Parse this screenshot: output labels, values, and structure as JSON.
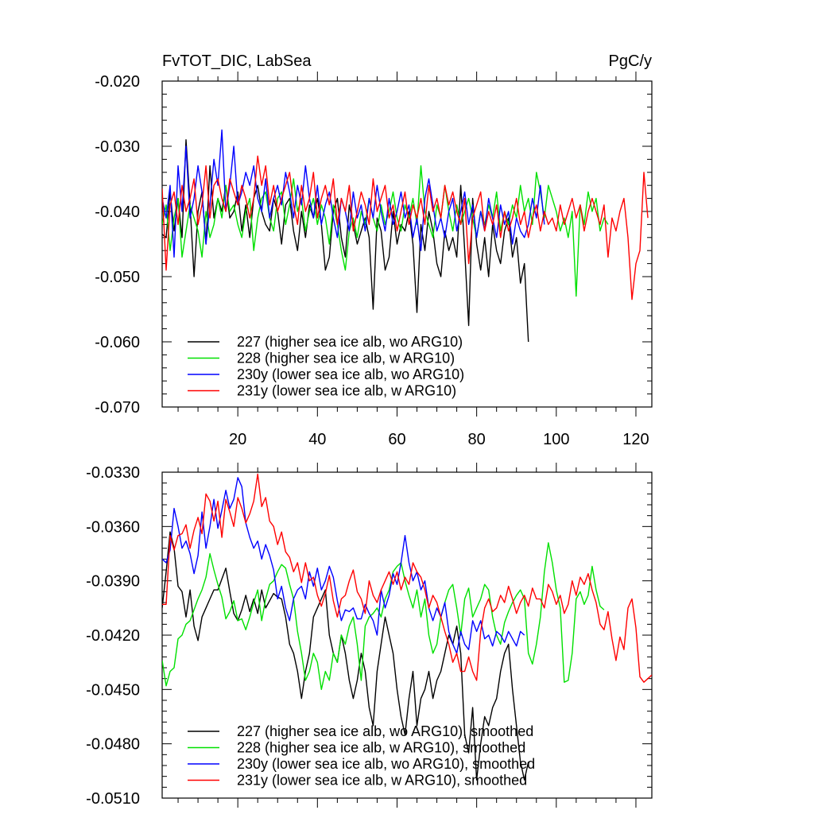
{
  "header": {
    "left_title": "FvTOT_DIC, LabSea",
    "right_title": "PgC/y"
  },
  "chart_data": [
    {
      "type": "line",
      "title": "FvTOT_DIC, LabSea",
      "units": "PgC/y",
      "xlim": [
        1,
        124
      ],
      "ylim": [
        -0.07,
        -0.02
      ],
      "x_ticks": [
        20,
        40,
        60,
        80,
        100,
        120
      ],
      "x_tick_labels": [
        "20",
        "40",
        "60",
        "80",
        "100",
        "120"
      ],
      "y_ticks": [
        -0.02,
        -0.03,
        -0.04,
        -0.05,
        -0.06,
        -0.07
      ],
      "y_tick_labels": [
        "-0.020",
        "-0.030",
        "-0.040",
        "-0.050",
        "-0.060",
        "-0.070"
      ],
      "legend_position": "bottom-left",
      "series": [
        {
          "name": "227 (higher sea ice alb, wo ARG10)",
          "color": "#000000",
          "x_start": 1,
          "values": [
            -0.0435,
            -0.044,
            -0.037,
            -0.043,
            -0.038,
            -0.044,
            -0.029,
            -0.039,
            -0.05,
            -0.04,
            -0.037,
            -0.045,
            -0.033,
            -0.041,
            -0.038,
            -0.04,
            -0.036,
            -0.041,
            -0.04,
            -0.037,
            -0.043,
            -0.039,
            -0.044,
            -0.038,
            -0.036,
            -0.04,
            -0.042,
            -0.043,
            -0.038,
            -0.04,
            -0.045,
            -0.039,
            -0.038,
            -0.043,
            -0.046,
            -0.04,
            -0.044,
            -0.039,
            -0.041,
            -0.038,
            -0.042,
            -0.049,
            -0.047,
            -0.04,
            -0.038,
            -0.044,
            -0.047,
            -0.039,
            -0.042,
            -0.045,
            -0.043,
            -0.041,
            -0.044,
            -0.055,
            -0.041,
            -0.043,
            -0.049,
            -0.047,
            -0.04,
            -0.045,
            -0.042,
            -0.043,
            -0.04,
            -0.045,
            -0.0555,
            -0.042,
            -0.046,
            -0.04,
            -0.043,
            -0.048,
            -0.05,
            -0.043,
            -0.046,
            -0.044,
            -0.047,
            -0.036,
            -0.046,
            -0.0575,
            -0.038,
            -0.045,
            -0.049,
            -0.044,
            -0.05,
            -0.042,
            -0.046,
            -0.048,
            -0.043,
            -0.041,
            -0.047,
            -0.044,
            -0.051,
            -0.048,
            -0.06
          ]
        },
        {
          "name": "228 (higher sea ice alb, w ARG10)",
          "color": "#00e000",
          "x_start": 1,
          "values": [
            -0.042,
            -0.039,
            -0.046,
            -0.041,
            -0.038,
            -0.047,
            -0.043,
            -0.039,
            -0.041,
            -0.043,
            -0.047,
            -0.04,
            -0.044,
            -0.042,
            -0.038,
            -0.041,
            -0.036,
            -0.04,
            -0.039,
            -0.042,
            -0.044,
            -0.04,
            -0.038,
            -0.046,
            -0.041,
            -0.038,
            -0.037,
            -0.041,
            -0.043,
            -0.038,
            -0.037,
            -0.042,
            -0.039,
            -0.035,
            -0.04,
            -0.038,
            -0.043,
            -0.04,
            -0.038,
            -0.042,
            -0.039,
            -0.041,
            -0.045,
            -0.039,
            -0.042,
            -0.046,
            -0.049,
            -0.043,
            -0.041,
            -0.044,
            -0.04,
            -0.042,
            -0.038,
            -0.041,
            -0.043,
            -0.039,
            -0.042,
            -0.04,
            -0.037,
            -0.041,
            -0.043,
            -0.039,
            -0.041,
            -0.038,
            -0.042,
            -0.033,
            -0.04,
            -0.042,
            -0.044,
            -0.039,
            -0.041,
            -0.036,
            -0.04,
            -0.043,
            -0.039,
            -0.042,
            -0.04,
            -0.038,
            -0.041,
            -0.044,
            -0.04,
            -0.042,
            -0.039,
            -0.041,
            -0.037,
            -0.043,
            -0.04,
            -0.042,
            -0.039,
            -0.041,
            -0.036,
            -0.04,
            -0.038,
            -0.042,
            -0.034,
            -0.037,
            -0.041,
            -0.036,
            -0.038,
            -0.04,
            -0.043,
            -0.041,
            -0.044,
            -0.04,
            -0.053,
            -0.039,
            -0.042,
            -0.037,
            -0.04,
            -0.038,
            -0.043,
            -0.041,
            -0.042
          ]
        },
        {
          "name": "230y (lower sea ice alb, wo ARG10)",
          "color": "#0000ff",
          "x_start": 1,
          "values": [
            -0.038,
            -0.041,
            -0.036,
            -0.047,
            -0.033,
            -0.04,
            -0.03,
            -0.041,
            -0.038,
            -0.033,
            -0.037,
            -0.045,
            -0.039,
            -0.032,
            -0.036,
            -0.0275,
            -0.04,
            -0.036,
            -0.03,
            -0.039,
            -0.037,
            -0.034,
            -0.036,
            -0.033,
            -0.038,
            -0.04,
            -0.035,
            -0.041,
            -0.038,
            -0.036,
            -0.039,
            -0.034,
            -0.037,
            -0.041,
            -0.036,
            -0.039,
            -0.033,
            -0.038,
            -0.041,
            -0.036,
            -0.042,
            -0.039,
            -0.037,
            -0.041,
            -0.044,
            -0.038,
            -0.04,
            -0.043,
            -0.037,
            -0.041,
            -0.039,
            -0.043,
            -0.038,
            -0.041,
            -0.036,
            -0.04,
            -0.043,
            -0.038,
            -0.042,
            -0.04,
            -0.037,
            -0.041,
            -0.039,
            -0.044,
            -0.041,
            -0.046,
            -0.038,
            -0.035,
            -0.039,
            -0.043,
            -0.041,
            -0.044,
            -0.04,
            -0.038,
            -0.043,
            -0.04,
            -0.037,
            -0.042,
            -0.039,
            -0.044,
            -0.04,
            -0.043,
            -0.038,
            -0.041,
            -0.044,
            -0.039,
            -0.042,
            -0.04,
            -0.045,
            -0.041,
            -0.043,
            -0.044,
            -0.042,
            -0.038,
            -0.041,
            -0.036,
            -0.042
          ]
        },
        {
          "name": "231y (lower sea ice alb, w ARG10)",
          "color": "#ff0000",
          "x_start": 1,
          "values": [
            -0.0365,
            -0.049,
            -0.039,
            -0.037,
            -0.042,
            -0.036,
            -0.04,
            -0.038,
            -0.035,
            -0.042,
            -0.039,
            -0.033,
            -0.041,
            -0.036,
            -0.035,
            -0.038,
            -0.04,
            -0.035,
            -0.037,
            -0.039,
            -0.036,
            -0.038,
            -0.041,
            -0.038,
            -0.0315,
            -0.036,
            -0.033,
            -0.039,
            -0.036,
            -0.04,
            -0.038,
            -0.036,
            -0.034,
            -0.039,
            -0.042,
            -0.036,
            -0.04,
            -0.038,
            -0.034,
            -0.041,
            -0.038,
            -0.036,
            -0.039,
            -0.035,
            -0.042,
            -0.038,
            -0.04,
            -0.036,
            -0.043,
            -0.04,
            -0.037,
            -0.039,
            -0.042,
            -0.035,
            -0.04,
            -0.038,
            -0.036,
            -0.041,
            -0.039,
            -0.043,
            -0.04,
            -0.037,
            -0.042,
            -0.039,
            -0.041,
            -0.038,
            -0.042,
            -0.036,
            -0.04,
            -0.038,
            -0.041,
            -0.036,
            -0.039,
            -0.037,
            -0.04,
            -0.042,
            -0.038,
            -0.048,
            -0.041,
            -0.039,
            -0.037,
            -0.043,
            -0.04,
            -0.042,
            -0.039,
            -0.044,
            -0.04,
            -0.043,
            -0.041,
            -0.038,
            -0.042,
            -0.04,
            -0.044,
            -0.041,
            -0.039,
            -0.043,
            -0.04,
            -0.042,
            -0.041,
            -0.043,
            -0.039,
            -0.042,
            -0.04,
            -0.038,
            -0.041,
            -0.039,
            -0.043,
            -0.04,
            -0.038,
            -0.04,
            -0.042,
            -0.039,
            -0.047,
            -0.041,
            -0.043,
            -0.04,
            -0.038,
            -0.044,
            -0.0535,
            -0.048,
            -0.046,
            -0.034,
            -0.041
          ]
        }
      ]
    },
    {
      "type": "line",
      "xlim": [
        1,
        124
      ],
      "ylim": [
        -0.051,
        -0.033
      ],
      "x_ticks": [
        20,
        40,
        60,
        80,
        100,
        120
      ],
      "x_tick_labels": [],
      "y_ticks": [
        -0.033,
        -0.036,
        -0.039,
        -0.042,
        -0.045,
        -0.048,
        -0.051
      ],
      "y_tick_labels": [
        "-0.0330",
        "-0.0360",
        "-0.0390",
        "-0.0420",
        "-0.0450",
        "-0.0480",
        "-0.0510"
      ],
      "legend_position": "bottom-left",
      "series": [
        {
          "name": "227 (higher sea ice alb, wo ARG10), smoothed",
          "color": "#000000",
          "x_start": 1,
          "values": [
            -0.0405,
            -0.0385,
            -0.0363,
            -0.0372,
            -0.0393,
            -0.0396,
            -0.041,
            -0.0395,
            -0.0415,
            -0.0423,
            -0.041,
            -0.0405,
            -0.04,
            -0.0395,
            -0.0395,
            -0.0389,
            -0.0383,
            -0.0396,
            -0.0408,
            -0.0412,
            -0.0406,
            -0.0398,
            -0.0407,
            -0.04,
            -0.0408,
            -0.0395,
            -0.0405,
            -0.0401,
            -0.0397,
            -0.0399,
            -0.04,
            -0.041,
            -0.0425,
            -0.043,
            -0.044,
            -0.0455,
            -0.044,
            -0.043,
            -0.041,
            -0.0405,
            -0.04,
            -0.0395,
            -0.042,
            -0.043,
            -0.0435,
            -0.042,
            -0.043,
            -0.0445,
            -0.0455,
            -0.0445,
            -0.043,
            -0.044,
            -0.046,
            -0.047,
            -0.044,
            -0.0425,
            -0.041,
            -0.042,
            -0.043,
            -0.045,
            -0.0465,
            -0.0475,
            -0.0455,
            -0.044,
            -0.047,
            -0.0455,
            -0.045,
            -0.044,
            -0.0455,
            -0.0445,
            -0.044,
            -0.043,
            -0.042,
            -0.0425,
            -0.0415,
            -0.043,
            -0.0475,
            -0.0485,
            -0.046,
            -0.05,
            -0.048,
            -0.0465,
            -0.047,
            -0.046,
            -0.0455,
            -0.044,
            -0.043,
            -0.0425,
            -0.045,
            -0.047,
            -0.049,
            -0.05,
            -0.049
          ]
        },
        {
          "name": "228 (higher sea ice alb, w ARG10), smoothed",
          "color": "#00e000",
          "x_start": 1,
          "values": [
            -0.0434,
            -0.0448,
            -0.044,
            -0.0438,
            -0.0422,
            -0.042,
            -0.0414,
            -0.0412,
            -0.0406,
            -0.04,
            -0.0395,
            -0.0388,
            -0.0375,
            -0.0384,
            -0.0392,
            -0.0399,
            -0.0411,
            -0.0407,
            -0.0401,
            -0.0412,
            -0.0411,
            -0.0417,
            -0.041,
            -0.0402,
            -0.0395,
            -0.0412,
            -0.04,
            -0.0392,
            -0.039,
            -0.0385,
            -0.0381,
            -0.0383,
            -0.0392,
            -0.04,
            -0.0418,
            -0.043,
            -0.0445,
            -0.044,
            -0.043,
            -0.0435,
            -0.045,
            -0.044,
            -0.0445,
            -0.043,
            -0.0435,
            -0.042,
            -0.0425,
            -0.0415,
            -0.041,
            -0.0425,
            -0.0445,
            -0.0415,
            -0.041,
            -0.0408,
            -0.0405,
            -0.041,
            -0.04,
            -0.0395,
            -0.0385,
            -0.0382,
            -0.038,
            -0.039,
            -0.0398,
            -0.0405,
            -0.0395,
            -0.041,
            -0.04,
            -0.042,
            -0.043,
            -0.0425,
            -0.041,
            -0.0402,
            -0.0395,
            -0.0392,
            -0.0405,
            -0.042,
            -0.04,
            -0.0394,
            -0.041,
            -0.0405,
            -0.04,
            -0.0392,
            -0.0395,
            -0.041,
            -0.042,
            -0.0425,
            -0.0413,
            -0.0407,
            -0.0402,
            -0.0398,
            -0.0395,
            -0.04,
            -0.043,
            -0.0436,
            -0.0425,
            -0.041,
            -0.0385,
            -0.0369,
            -0.038,
            -0.0395,
            -0.0405,
            -0.0446,
            -0.0445,
            -0.043,
            -0.04,
            -0.0396,
            -0.0403,
            -0.0398,
            -0.0382,
            -0.0395,
            -0.0404,
            -0.0406
          ]
        },
        {
          "name": "230y (lower sea ice alb, wo ARG10), smoothed",
          "color": "#0000ff",
          "x_start": 1,
          "values": [
            -0.0378,
            -0.038,
            -0.0373,
            -0.035,
            -0.036,
            -0.0372,
            -0.0368,
            -0.0375,
            -0.0386,
            -0.0376,
            -0.0352,
            -0.0372,
            -0.036,
            -0.0345,
            -0.0361,
            -0.0351,
            -0.034,
            -0.035,
            -0.0345,
            -0.0333,
            -0.0338,
            -0.0358,
            -0.0366,
            -0.0372,
            -0.0368,
            -0.0378,
            -0.037,
            -0.0376,
            -0.0384,
            -0.04,
            -0.0393,
            -0.0405,
            -0.0412,
            -0.04,
            -0.0395,
            -0.0393,
            -0.04,
            -0.0385,
            -0.0393,
            -0.0383,
            -0.0395,
            -0.039,
            -0.0382,
            -0.0388,
            -0.0401,
            -0.0412,
            -0.0406,
            -0.0407,
            -0.0405,
            -0.0411,
            -0.0411,
            -0.0403,
            -0.0408,
            -0.0412,
            -0.042,
            -0.0395,
            -0.0405,
            -0.0398,
            -0.0386,
            -0.0392,
            -0.038,
            -0.0365,
            -0.038,
            -0.039,
            -0.0385,
            -0.0395,
            -0.039,
            -0.0405,
            -0.0412,
            -0.0405,
            -0.041,
            -0.0402,
            -0.0418,
            -0.0425,
            -0.043,
            -0.0418,
            -0.0425,
            -0.0428,
            -0.0412,
            -0.0418,
            -0.0412,
            -0.0422,
            -0.042,
            -0.0426,
            -0.0418,
            -0.042,
            -0.0424,
            -0.0418,
            -0.0422,
            -0.0426,
            -0.0418,
            -0.042
          ]
        },
        {
          "name": "231y (lower sea ice alb, w ARG10), smoothed",
          "color": "#ff0000",
          "x_start": 1,
          "values": [
            -0.0403,
            -0.0403,
            -0.0365,
            -0.0373,
            -0.0365,
            -0.0364,
            -0.0359,
            -0.0372,
            -0.0362,
            -0.0355,
            -0.0364,
            -0.0342,
            -0.0346,
            -0.0357,
            -0.0346,
            -0.0366,
            -0.0345,
            -0.0352,
            -0.036,
            -0.0344,
            -0.035,
            -0.0358,
            -0.0353,
            -0.0346,
            -0.0331,
            -0.0349,
            -0.0344,
            -0.0357,
            -0.036,
            -0.037,
            -0.0363,
            -0.0374,
            -0.0377,
            -0.0385,
            -0.038,
            -0.0391,
            -0.038,
            -0.039,
            -0.0388,
            -0.0398,
            -0.0404,
            -0.0397,
            -0.0387,
            -0.0401,
            -0.041,
            -0.04,
            -0.0398,
            -0.039,
            -0.0384,
            -0.0396,
            -0.04,
            -0.0408,
            -0.039,
            -0.0398,
            -0.0402,
            -0.0395,
            -0.039,
            -0.0385,
            -0.0392,
            -0.0385,
            -0.0395,
            -0.0388,
            -0.0392,
            -0.038,
            -0.0385,
            -0.0388,
            -0.0395,
            -0.0405,
            -0.0398,
            -0.0402,
            -0.041,
            -0.0418,
            -0.0425,
            -0.0435,
            -0.043,
            -0.044,
            -0.044,
            -0.0432,
            -0.044,
            -0.0445,
            -0.0418,
            -0.0405,
            -0.04,
            -0.0407,
            -0.0405,
            -0.0398,
            -0.0402,
            -0.0393,
            -0.04,
            -0.0408,
            -0.0402,
            -0.0398,
            -0.0404,
            -0.0394,
            -0.04,
            -0.04,
            -0.0405,
            -0.0392,
            -0.0396,
            -0.0403,
            -0.0398,
            -0.0408,
            -0.0403,
            -0.039,
            -0.0398,
            -0.0388,
            -0.0392,
            -0.0386,
            -0.0395,
            -0.0402,
            -0.0414,
            -0.0417,
            -0.0407,
            -0.0422,
            -0.0434,
            -0.0421,
            -0.0428,
            -0.0405,
            -0.04,
            -0.0416,
            -0.0443,
            -0.0446,
            -0.0444,
            -0.0442
          ]
        }
      ]
    }
  ]
}
